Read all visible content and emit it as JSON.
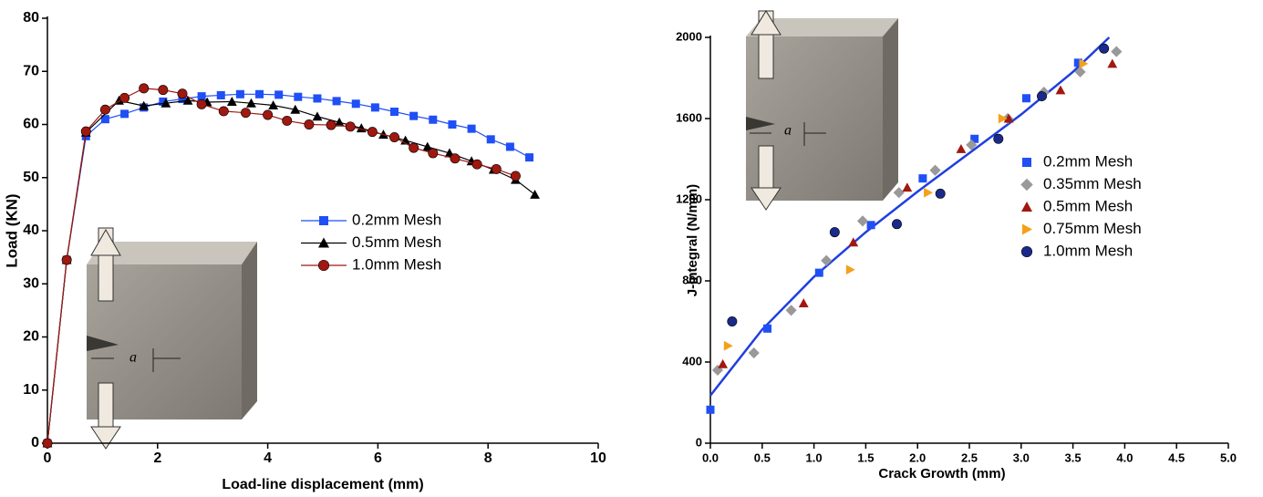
{
  "chart_data": [
    {
      "type": "line",
      "x_label": "Load-line displacement (mm)",
      "y_label": "Load (KN)",
      "xlim": [
        0,
        10
      ],
      "ylim": [
        0,
        80
      ],
      "xticks": [
        0,
        2,
        4,
        6,
        8,
        10
      ],
      "yticks": [
        0,
        10,
        20,
        30,
        40,
        50,
        60,
        70,
        80
      ],
      "legend": "center",
      "inset_label": "a",
      "series": [
        {
          "name": "0.2mm Mesh",
          "color": "#1f4ff5",
          "marker": "square",
          "x": [
            0,
            0.35,
            0.7,
            1.05,
            1.4,
            1.75,
            2.1,
            2.45,
            2.8,
            3.15,
            3.5,
            3.85,
            4.2,
            4.55,
            4.9,
            5.25,
            5.6,
            5.95,
            6.3,
            6.65,
            7.0,
            7.35,
            7.7,
            8.05,
            8.4,
            8.75
          ],
          "values": [
            0,
            34.5,
            57.8,
            61,
            62,
            63.2,
            64.3,
            64.8,
            65.3,
            65.5,
            65.7,
            65.7,
            65.6,
            65.2,
            64.9,
            64.4,
            63.9,
            63.2,
            62.4,
            61.6,
            60.9,
            60,
            59.2,
            57.2,
            55.8,
            53.8
          ]
        },
        {
          "name": "0.5mm Mesh",
          "color": "#000000",
          "marker": "triangle",
          "x": [
            0,
            0.35,
            0.7,
            1.3,
            1.75,
            2.15,
            2.55,
            2.9,
            3.35,
            3.7,
            4.1,
            4.5,
            4.9,
            5.3,
            5.7,
            6.1,
            6.5,
            6.9,
            7.3,
            7.7,
            8.1,
            8.5,
            8.85
          ],
          "values": [
            0,
            34.5,
            58.5,
            64.5,
            63.5,
            64,
            64.5,
            64.2,
            64.3,
            64,
            63.6,
            62.8,
            61.5,
            60.4,
            59.3,
            58.1,
            57,
            55.8,
            54.6,
            53.1,
            51.5,
            49.6,
            46.8
          ]
        },
        {
          "name": "1.0mm Mesh",
          "color": "#a01810",
          "marker": "circle",
          "x": [
            0,
            0.35,
            0.7,
            1.05,
            1.4,
            1.75,
            2.1,
            2.45,
            2.8,
            3.2,
            3.6,
            4.0,
            4.35,
            4.75,
            5.15,
            5.5,
            5.9,
            6.3,
            6.65,
            7.0,
            7.4,
            7.8,
            8.15,
            8.5
          ],
          "values": [
            0,
            34.5,
            58.7,
            62.8,
            65,
            66.8,
            66.5,
            65.8,
            63.8,
            62.5,
            62.2,
            61.8,
            60.7,
            60,
            59.9,
            59.6,
            58.6,
            57.6,
            55.6,
            54.6,
            53.6,
            52.5,
            51.6,
            50.3
          ]
        }
      ]
    },
    {
      "type": "scatter",
      "x_label": "Crack Growth (mm)",
      "y_label": "J-Integral (N/mm)",
      "xlim": [
        0,
        5
      ],
      "ylim": [
        0,
        2000
      ],
      "xticks": [
        {
          "value": 0,
          "label": "0.0"
        },
        0.5,
        {
          "value": 1,
          "label": "1.0"
        },
        1.5,
        {
          "value": 2,
          "label": "2.0"
        },
        2.5,
        {
          "value": 3,
          "label": "3.0"
        },
        3.5,
        {
          "value": 4,
          "label": "4.0"
        },
        4.5,
        {
          "value": 5,
          "label": "5.0"
        }
      ],
      "yticks": [
        0,
        400,
        800,
        1200,
        1600,
        2000
      ],
      "legend": "center right",
      "inset_label": "a",
      "fit": {
        "color": "#1f3fe0",
        "x": [
          0,
          0.5,
          1,
          1.5,
          2,
          2.5,
          3,
          3.5,
          3.85
        ],
        "values": [
          235,
          560,
          820,
          1040,
          1240,
          1430,
          1620,
          1830,
          2000
        ]
      },
      "series": [
        {
          "name": "0.2mm  Mesh",
          "color": "#1f4ff5",
          "marker": "square",
          "x": [
            0,
            0.55,
            1.05,
            1.55,
            2.05,
            2.55,
            3.05,
            3.55
          ],
          "values": [
            165,
            565,
            840,
            1075,
            1305,
            1500,
            1700,
            1875
          ]
        },
        {
          "name": "0.35mm Mesh",
          "color": "#999999",
          "marker": "diamond",
          "x": [
            0.07,
            0.42,
            0.78,
            1.12,
            1.47,
            1.82,
            2.17,
            2.52,
            2.87,
            3.22,
            3.57,
            3.92
          ],
          "values": [
            360,
            445,
            655,
            900,
            1095,
            1235,
            1345,
            1470,
            1600,
            1730,
            1830,
            1930
          ]
        },
        {
          "name": "0.5mm Mesh",
          "color": "#a01810",
          "marker": "triangle",
          "x": [
            0.12,
            0.9,
            1.38,
            1.9,
            2.42,
            2.88,
            3.38,
            3.88
          ],
          "values": [
            390,
            690,
            990,
            1260,
            1450,
            1600,
            1740,
            1870
          ]
        },
        {
          "name": "0.75mm Mesh",
          "color": "#f5a01a",
          "marker": "triangle-right",
          "x": [
            0.17,
            1.35,
            2.1,
            2.82,
            3.6
          ],
          "values": [
            480,
            855,
            1235,
            1600,
            1870
          ]
        },
        {
          "name": "1.0mm  Mesh",
          "color": "#1a2a8a",
          "marker": "circle",
          "x": [
            0.21,
            1.2,
            1.8,
            2.22,
            2.78,
            3.2,
            3.8
          ],
          "values": [
            600,
            1040,
            1080,
            1230,
            1500,
            1710,
            1945
          ]
        }
      ]
    }
  ]
}
